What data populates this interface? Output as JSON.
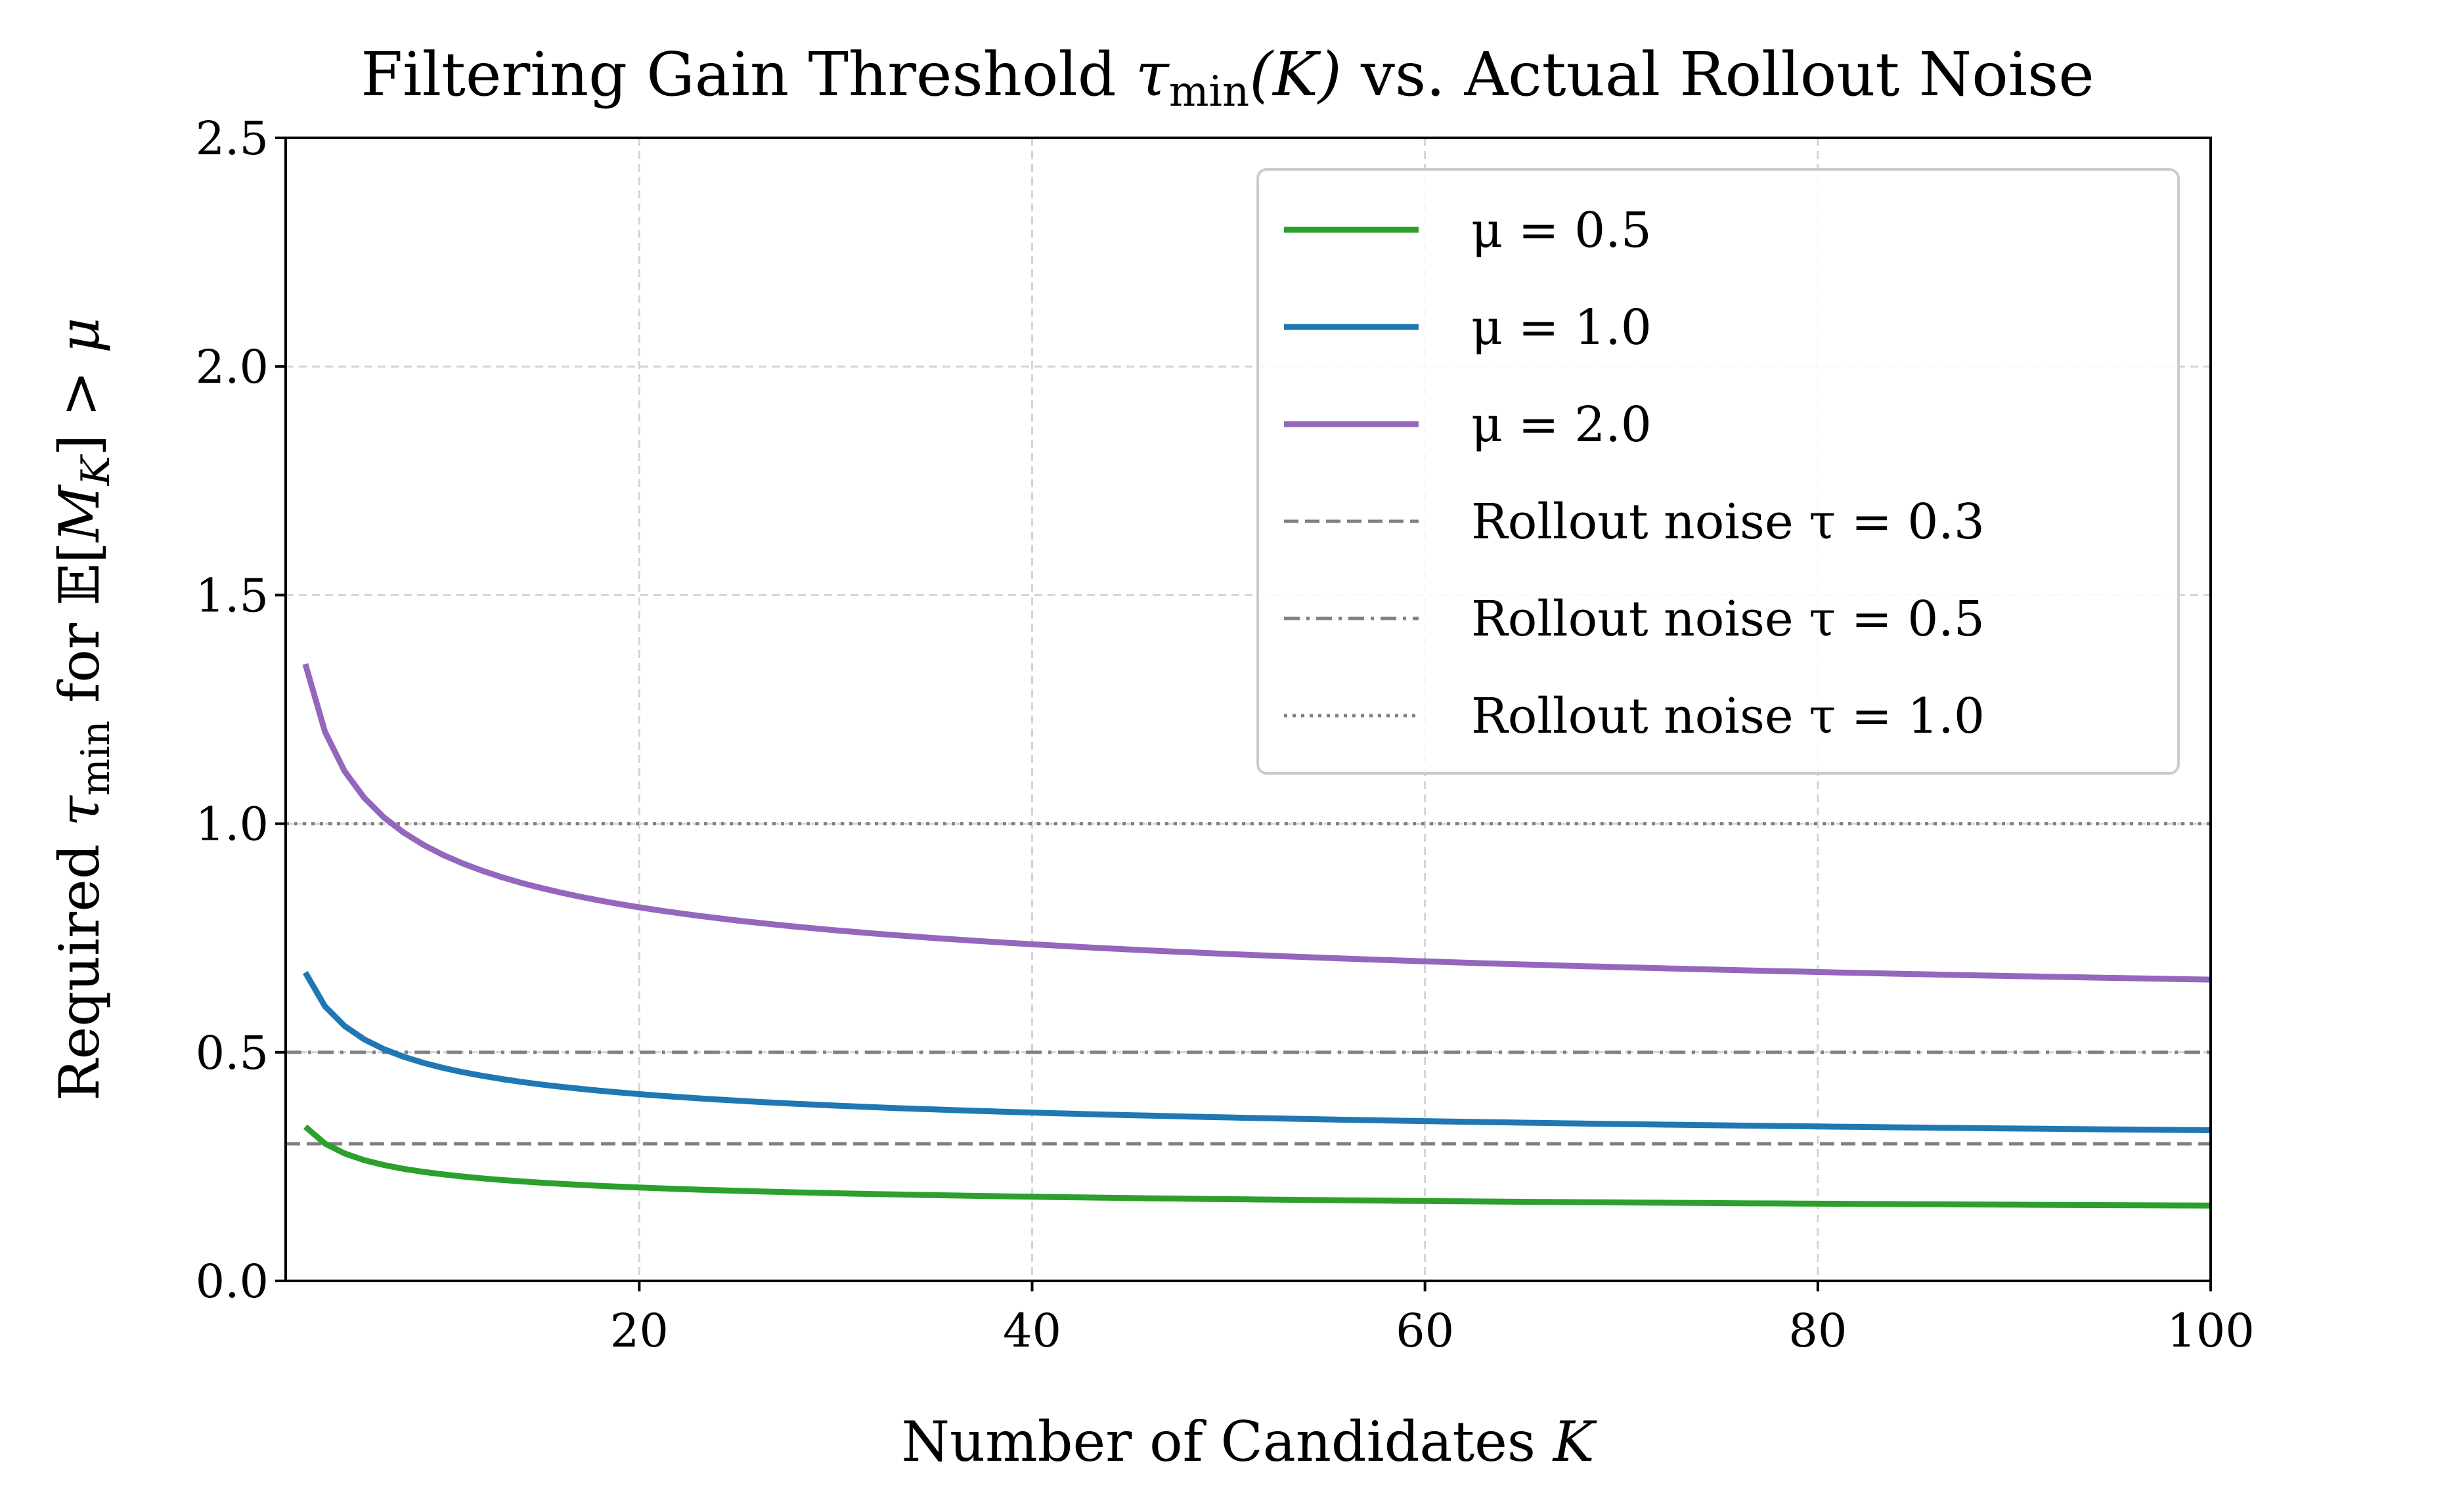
{
  "chart_data": {
    "type": "line",
    "title": {
      "prefix": "Filtering Gain Threshold ",
      "tau": "τ",
      "sub": "min",
      "arg": "(K)",
      "suffix": " vs. Actual Rollout Noise"
    },
    "xlabel": {
      "text": "Number of Candidates ",
      "var": "K"
    },
    "ylabel": {
      "prefix": "Required ",
      "tau": "τ",
      "sub": "min",
      "mid": " for ",
      "expect": "𝔼",
      "open": "[",
      "M": "M",
      "Msub": "K",
      "close": "] > ",
      "mu": "μ"
    },
    "xlim": [
      2,
      100
    ],
    "ylim": [
      0,
      2.5
    ],
    "xticks": [
      20,
      40,
      60,
      80,
      100
    ],
    "yticks": [
      0.0,
      0.5,
      1.0,
      1.5,
      2.0,
      2.5
    ],
    "xtick_labels": [
      "20",
      "40",
      "60",
      "80",
      "100"
    ],
    "ytick_labels": [
      "0.0",
      "0.5",
      "1.0",
      "1.5",
      "2.0",
      "2.5"
    ],
    "grid": true,
    "legend_position": "top-right",
    "k_range": [
      3,
      100
    ],
    "series": [
      {
        "name": "μ = 0.5",
        "mu": 0.5,
        "color": "#2ca02c",
        "formula": "mu / sqrt(2 ln K)"
      },
      {
        "name": "μ = 1.0",
        "mu": 1.0,
        "color": "#1f77b4",
        "formula": "mu / sqrt(2 ln K)"
      },
      {
        "name": "μ = 2.0",
        "mu": 2.0,
        "color": "#9467bd",
        "formula": "mu / sqrt(2 ln K)"
      }
    ],
    "reference_lines": [
      {
        "name": "Rollout noise τ = 0.3",
        "value": 0.3,
        "style": "dashed",
        "color": "#808080"
      },
      {
        "name": "Rollout noise τ = 0.5",
        "value": 0.5,
        "style": "dashdot",
        "color": "#808080"
      },
      {
        "name": "Rollout noise τ = 1.0",
        "value": 1.0,
        "style": "dotted",
        "color": "#808080"
      }
    ]
  }
}
